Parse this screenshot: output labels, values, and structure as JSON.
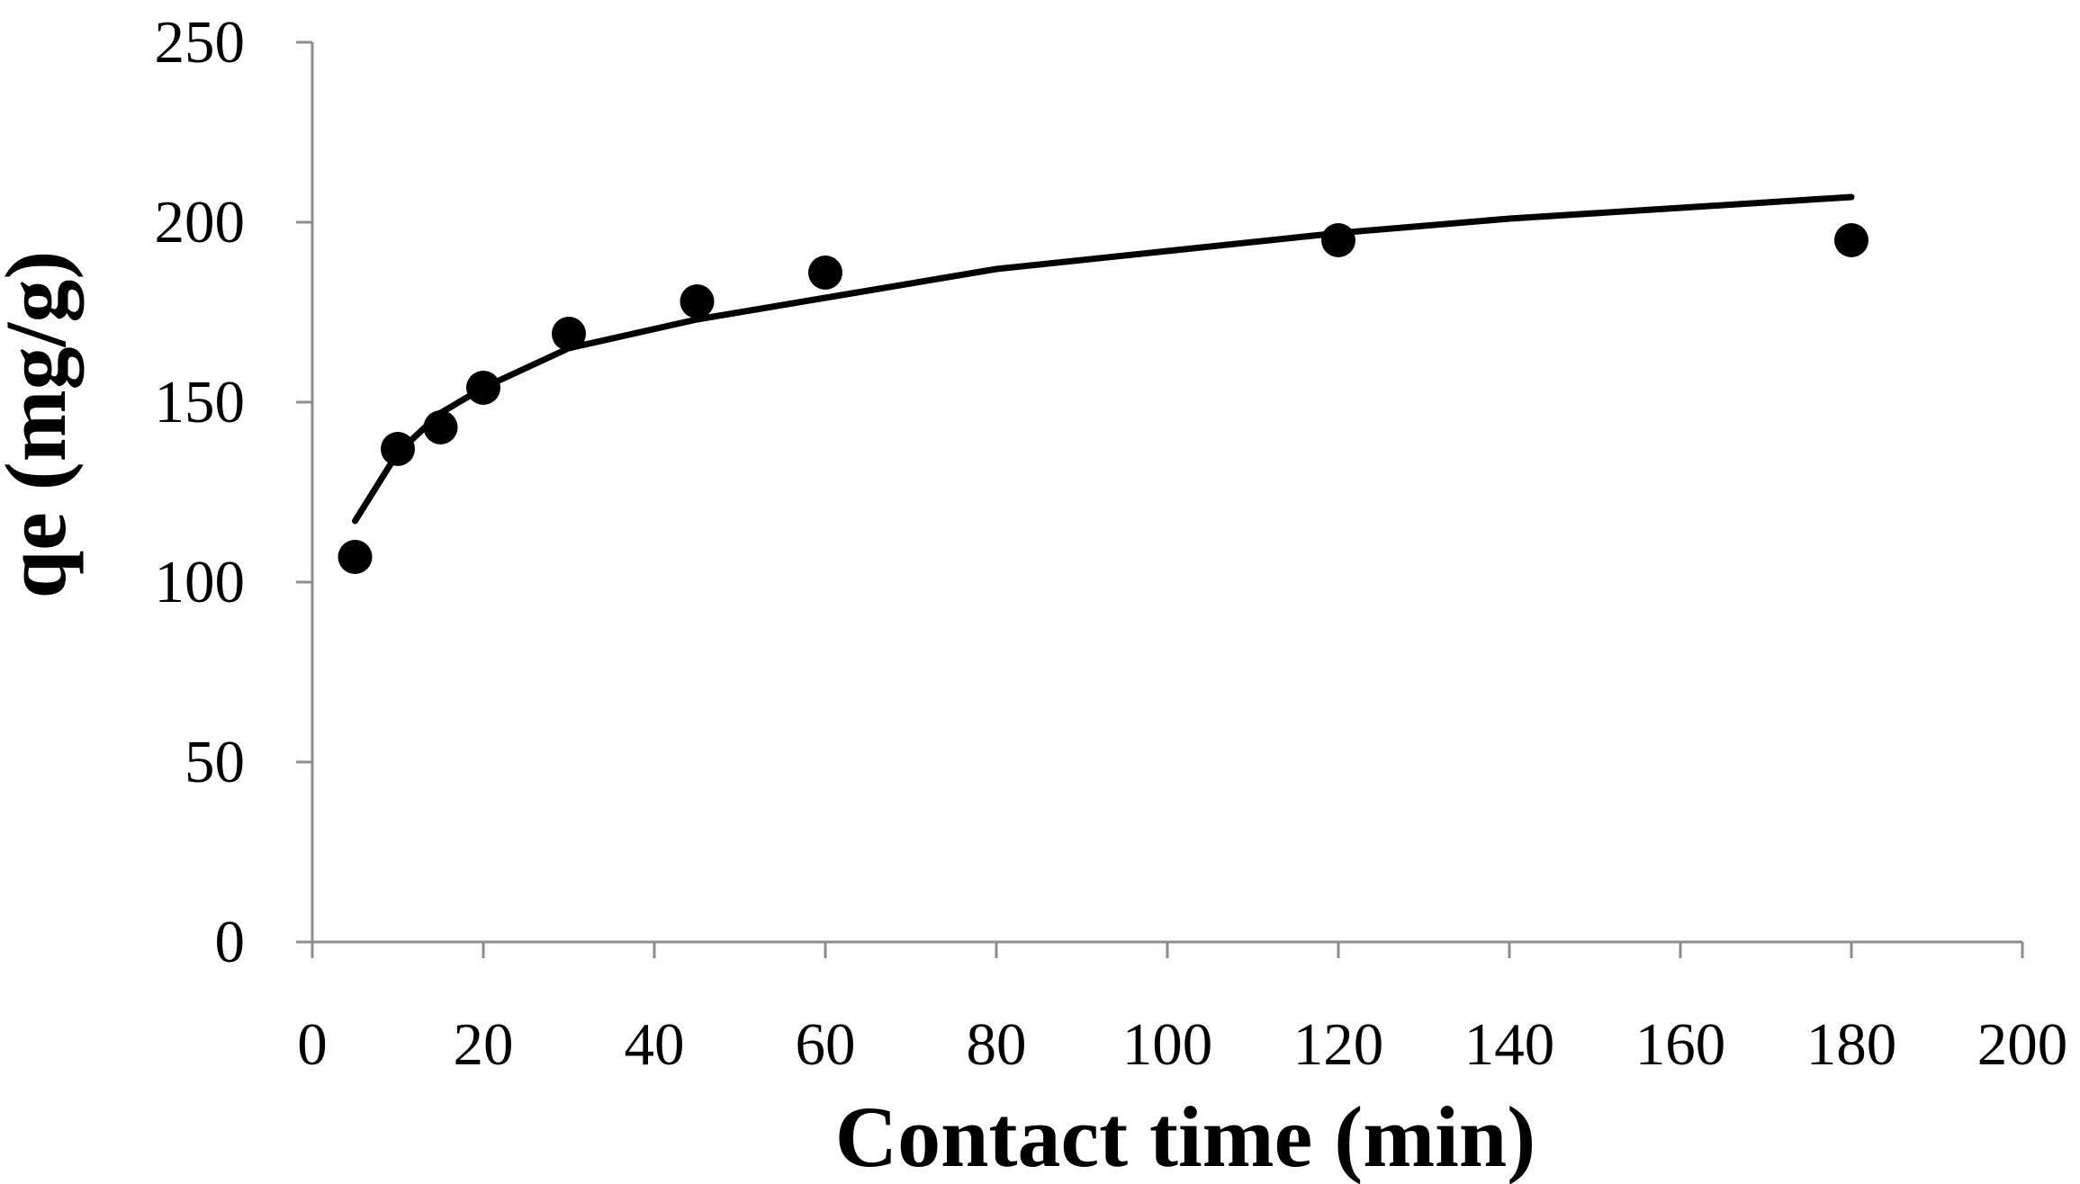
{
  "chart_data": {
    "type": "scatter",
    "title": "",
    "xlabel": "Contact time (min)",
    "ylabel": "qe (mg/g)",
    "xlim": [
      0,
      200
    ],
    "ylim": [
      0,
      250
    ],
    "x_ticks": [
      0,
      20,
      40,
      60,
      80,
      100,
      120,
      140,
      160,
      180,
      200
    ],
    "y_ticks": [
      0,
      50,
      100,
      150,
      200,
      250
    ],
    "grid": false,
    "legend": "none",
    "series": [
      {
        "type": "scatter",
        "color": "#000000",
        "marker": "circle",
        "x": [
          5,
          10,
          15,
          20,
          30,
          45,
          60,
          120,
          180
        ],
        "y": [
          107,
          137,
          143,
          154,
          169,
          178,
          186,
          195,
          195
        ]
      },
      {
        "type": "line",
        "fit": "logarithmic",
        "color": "#000000",
        "x": [
          5,
          10,
          15,
          20,
          30,
          45,
          60,
          80,
          100,
          120,
          140,
          160,
          180
        ],
        "y": [
          117,
          136,
          147,
          154,
          165,
          173,
          179,
          187,
          192,
          197,
          201,
          204,
          207
        ]
      }
    ]
  }
}
